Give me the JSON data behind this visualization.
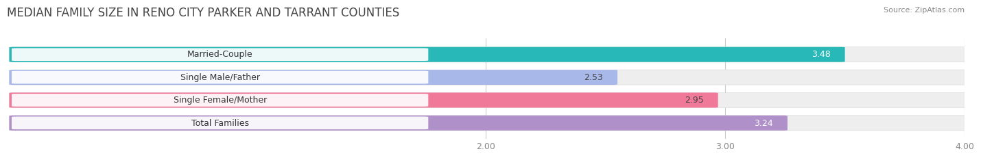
{
  "title": "MEDIAN FAMILY SIZE IN RENO CITY PARKER AND TARRANT COUNTIES",
  "source": "Source: ZipAtlas.com",
  "categories": [
    "Married-Couple",
    "Single Male/Father",
    "Single Female/Mother",
    "Total Families"
  ],
  "values": [
    3.48,
    2.53,
    2.95,
    3.24
  ],
  "bar_colors": [
    "#29b8b8",
    "#a8b8e8",
    "#f07898",
    "#b090c8"
  ],
  "value_label_colors": [
    "#ffffff",
    "#444444",
    "#444444",
    "#ffffff"
  ],
  "xlim": [
    2.0,
    4.0
  ],
  "xticks": [
    2.0,
    3.0,
    4.0
  ],
  "xtick_labels": [
    "2.00",
    "3.00",
    "4.00"
  ],
  "bar_height": 0.62,
  "figsize": [
    14.06,
    2.33
  ],
  "dpi": 100,
  "background_color": "#ffffff",
  "bar_bg_color": "#eeeeee",
  "title_fontsize": 12,
  "label_fontsize": 9,
  "value_fontsize": 9,
  "tick_fontsize": 9
}
